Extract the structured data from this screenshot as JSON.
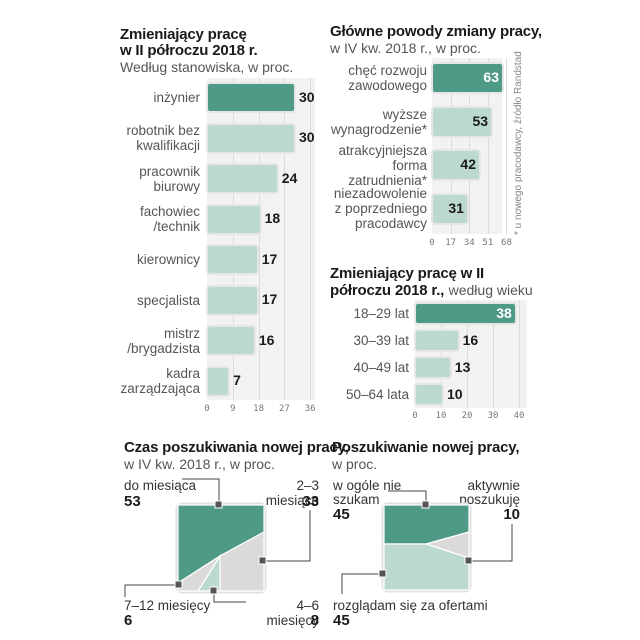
{
  "colors": {
    "dark": "#4f9987",
    "light": "#bcd9d1",
    "grey": "#dcdad8",
    "panel": "#f2f2f2"
  },
  "source_note": "* u nowego pracodawcy, źródło Randstad",
  "chart_data": [
    {
      "id": "by_position",
      "type": "bar",
      "orientation": "horizontal",
      "title_line1": "Zmieniający pracę",
      "title_line2": "w II półroczu 2018 r.",
      "subtitle": "Według stanowiska, w proc.",
      "categories": [
        [
          "inżynier"
        ],
        [
          "robotnik bez",
          "kwalifikacji"
        ],
        [
          "pracownik",
          "biurowy"
        ],
        [
          "fachowiec",
          "/technik"
        ],
        [
          "kierownicy"
        ],
        [
          "specjalista"
        ],
        [
          "mistrz",
          "/brygadzista"
        ],
        [
          "kadra",
          "zarządzająca"
        ]
      ],
      "values": [
        30,
        30,
        24,
        18,
        17,
        17,
        16,
        7
      ],
      "highlight": [
        0
      ],
      "xlim": [
        0,
        36
      ],
      "ticks": [
        "0",
        "9",
        "18",
        "27",
        "36"
      ],
      "grid": true
    },
    {
      "id": "reasons",
      "type": "bar",
      "orientation": "horizontal",
      "title_line1": "Główne powody zmiany pracy,",
      "subtitle": "w IV kw. 2018 r., w proc.",
      "categories": [
        [
          "chęć rozwoju",
          "zawodowego"
        ],
        [
          "wyższe",
          "wynagrodzenie*"
        ],
        [
          "atrakcyjniejsza",
          "forma",
          "zatrudnienia*"
        ],
        [
          "niezadowolenie",
          "z poprzedniego",
          "pracodawcy"
        ]
      ],
      "values": [
        63,
        53,
        42,
        31
      ],
      "highlight": [
        0
      ],
      "xlim": [
        0,
        68
      ],
      "ticks": [
        "0",
        "17",
        "34",
        "51",
        "68"
      ],
      "grid": true
    },
    {
      "id": "by_age",
      "type": "bar",
      "orientation": "horizontal",
      "title_line1": "Zmieniający pracę w II",
      "title_line2": "półroczu 2018 r.,",
      "subtitle": "według wieku",
      "categories": [
        [
          "18–29 lat"
        ],
        [
          "30–39 lat"
        ],
        [
          "40–49 lat"
        ],
        [
          "50–64 lata"
        ]
      ],
      "values": [
        38,
        16,
        13,
        10
      ],
      "highlight": [
        0
      ],
      "xlim": [
        0,
        40
      ],
      "ticks": [
        "0",
        "10",
        "20",
        "30",
        "40"
      ],
      "grid": true
    },
    {
      "id": "search_time",
      "type": "pie",
      "shape": "square",
      "title_line1": "Czas poszukiwania nowej pracy,",
      "subtitle": "w IV kw. 2018 r., w proc.",
      "slices": [
        {
          "label": "do miesiąca",
          "value": 53,
          "color": "dark"
        },
        {
          "label": "2–3 miesiące",
          "value": 33,
          "color": "grey"
        },
        {
          "label": "4–6 miesięcy",
          "value": 8,
          "color": "light"
        },
        {
          "label": "7–12 miesięcy",
          "value": 6,
          "color": "grey"
        }
      ]
    },
    {
      "id": "job_search",
      "type": "pie",
      "shape": "square",
      "title_line1": "Poszukiwanie nowej pracy,",
      "subtitle": "w proc.",
      "slices": [
        {
          "label_lines": [
            "w ogóle nie",
            "szukam"
          ],
          "value": 45,
          "color": "dark"
        },
        {
          "label_lines": [
            "aktywnie",
            "poszukuję"
          ],
          "value": 10,
          "color": "grey"
        },
        {
          "label_lines": [
            "rozglądam się za ofertami"
          ],
          "value": 45,
          "color": "light"
        }
      ]
    }
  ]
}
